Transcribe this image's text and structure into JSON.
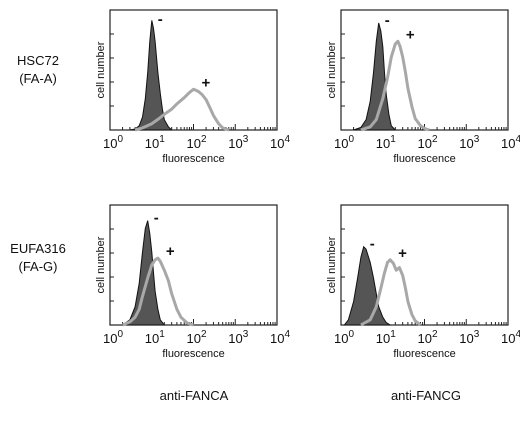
{
  "figure": {
    "row_labels": [
      {
        "line1": "HSC72",
        "line2": "(FA-A)"
      },
      {
        "line1": "EUFA316",
        "line2": "(FA-G)"
      }
    ],
    "column_labels": [
      "anti-FANCA",
      "anti-FANCG"
    ]
  },
  "chart_data": [
    {
      "type": "area",
      "panel": "HSC72 anti-FANCA",
      "xlabel": "fluorescence",
      "ylabel": "cell number",
      "xscale": "log",
      "xlim": [
        1,
        10000
      ],
      "xticks": [
        "10^0",
        "10^1",
        "10^2",
        "10^3",
        "10^4"
      ],
      "series": [
        {
          "name": "-",
          "style": "filled dark gray",
          "x": [
            3,
            4,
            5,
            6,
            7,
            8,
            9,
            10,
            11,
            12,
            14,
            16,
            18,
            20,
            25,
            30
          ],
          "y": [
            0,
            2,
            8,
            25,
            60,
            110,
            170,
            210,
            195,
            170,
            110,
            70,
            40,
            20,
            6,
            0
          ]
        },
        {
          "name": "+",
          "style": "light gray outline",
          "x": [
            4,
            6,
            10,
            15,
            20,
            30,
            40,
            60,
            80,
            100,
            130,
            160,
            200,
            250,
            300,
            400,
            500,
            700
          ],
          "y": [
            0,
            4,
            12,
            22,
            30,
            40,
            50,
            62,
            72,
            78,
            74,
            68,
            58,
            42,
            28,
            12,
            4,
            0
          ]
        }
      ]
    },
    {
      "type": "area",
      "panel": "HSC72 anti-FANCG",
      "xlabel": "fluorescence",
      "ylabel": "cell number",
      "xscale": "log",
      "xlim": [
        1,
        10000
      ],
      "xticks": [
        "10^0",
        "10^1",
        "10^2",
        "10^3",
        "10^4"
      ],
      "series": [
        {
          "name": "-",
          "style": "filled dark gray",
          "x": [
            2,
            3,
            4,
            5,
            6,
            7,
            8,
            9,
            10,
            11,
            12,
            14,
            16,
            20
          ],
          "y": [
            0,
            5,
            20,
            55,
            110,
            170,
            205,
            190,
            160,
            110,
            70,
            30,
            8,
            0
          ]
        },
        {
          "name": "+",
          "style": "light gray outline",
          "x": [
            3,
            5,
            7,
            10,
            13,
            16,
            20,
            23,
            26,
            30,
            35,
            40,
            50,
            60,
            80,
            100,
            130
          ],
          "y": [
            0,
            6,
            20,
            60,
            100,
            140,
            165,
            170,
            160,
            140,
            110,
            80,
            45,
            22,
            8,
            3,
            0
          ]
        }
      ]
    },
    {
      "type": "area",
      "panel": "EUFA316 anti-FANCA",
      "xlabel": "fluorescence",
      "ylabel": "cell number",
      "xscale": "log",
      "xlim": [
        1,
        10000
      ],
      "xticks": [
        "10^0",
        "10^1",
        "10^2",
        "10^3",
        "10^4"
      ],
      "series": [
        {
          "name": "-",
          "style": "filled dark gray",
          "x": [
            2,
            3,
            4,
            5,
            6,
            7,
            8,
            9,
            10,
            11,
            12,
            14,
            16,
            20
          ],
          "y": [
            0,
            10,
            35,
            80,
            140,
            185,
            200,
            175,
            140,
            100,
            65,
            30,
            10,
            0
          ]
        },
        {
          "name": "+",
          "style": "light gray outline",
          "x": [
            2,
            3,
            4,
            5,
            6,
            8,
            10,
            12,
            14,
            16,
            20,
            25,
            30,
            40,
            50,
            70,
            100
          ],
          "y": [
            0,
            6,
            15,
            30,
            55,
            90,
            115,
            125,
            128,
            122,
            105,
            85,
            60,
            30,
            15,
            4,
            0
          ]
        }
      ]
    },
    {
      "type": "area",
      "panel": "EUFA316 anti-FANCG",
      "xlabel": "fluorescence",
      "ylabel": "cell number",
      "xscale": "log",
      "xlim": [
        1,
        10000
      ],
      "xticks": [
        "10^0",
        "10^1",
        "10^2",
        "10^3",
        "10^4"
      ],
      "series": [
        {
          "name": "-",
          "style": "filled dark gray",
          "x": [
            1.2,
            1.5,
            2,
            2.5,
            3,
            3.5,
            4,
            5,
            6,
            7,
            8,
            10,
            12,
            15
          ],
          "y": [
            0,
            10,
            45,
            90,
            130,
            150,
            145,
            120,
            90,
            60,
            35,
            15,
            5,
            0
          ]
        },
        {
          "name": "+",
          "style": "light gray outline",
          "x": [
            3,
            5,
            7,
            9,
            11,
            13,
            15,
            18,
            21,
            25,
            30,
            35,
            40,
            50,
            60,
            80
          ],
          "y": [
            0,
            10,
            35,
            70,
            100,
            120,
            125,
            118,
            105,
            110,
            95,
            70,
            45,
            20,
            8,
            0
          ]
        }
      ]
    }
  ]
}
